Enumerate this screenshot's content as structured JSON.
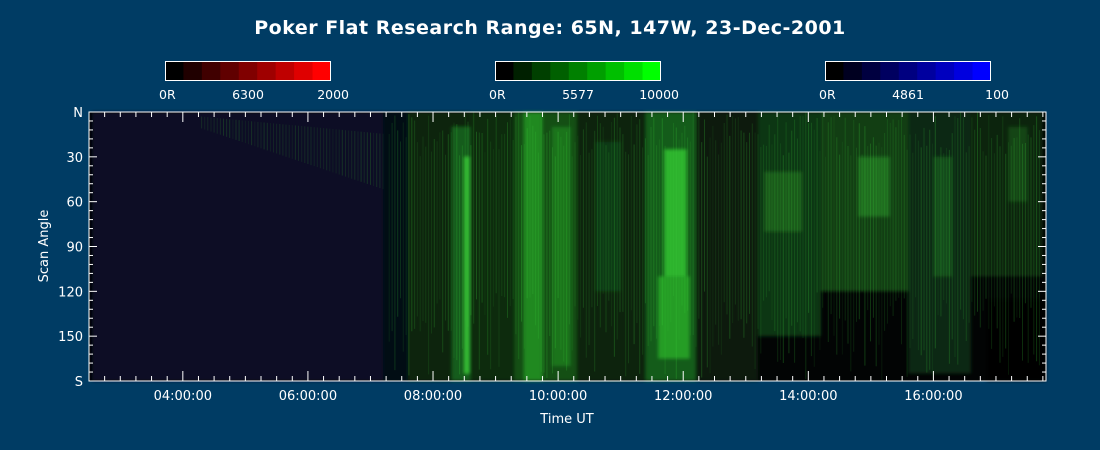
{
  "chart_data": {
    "type": "heatmap",
    "title": "Poker Flat Research Range: 65N, 147W, 23-Dec-2001",
    "xlabel": "Time UT",
    "ylabel": "Scan Angle",
    "x_ticks": [
      "04:00:00",
      "06:00:00",
      "08:00:00",
      "10:00:00",
      "12:00:00",
      "14:00:00",
      "16:00:00"
    ],
    "x_tick_hours": [
      4,
      6,
      8,
      10,
      12,
      14,
      16
    ],
    "xlim_hours": [
      2.5,
      17.8
    ],
    "y_ticks": [
      "N",
      "30",
      "60",
      "90",
      "120",
      "150",
      "S"
    ],
    "y_tick_values": [
      0,
      30,
      60,
      90,
      120,
      150,
      180
    ],
    "ylim": [
      0,
      180
    ],
    "colorbars": [
      {
        "name": "6300",
        "min_label": "0R",
        "center_label": "6300",
        "max_label": "2000",
        "color": "#ff0000"
      },
      {
        "name": "5577",
        "min_label": "0R",
        "center_label": "5577",
        "max_label": "10000",
        "color": "#00ff00"
      },
      {
        "name": "4861",
        "min_label": "0R",
        "center_label": "4861",
        "max_label": "100",
        "color": "#0000ff"
      }
    ],
    "background_color": "#003c64"
  }
}
